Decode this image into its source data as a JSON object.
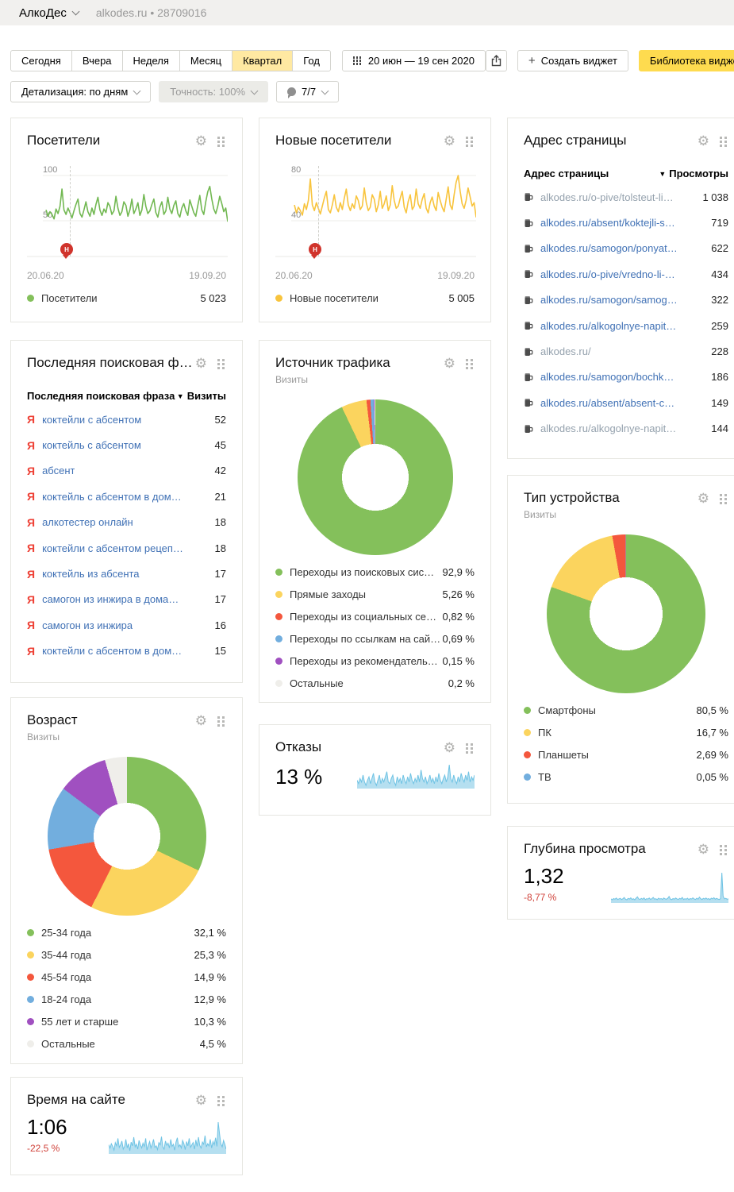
{
  "topbar": {
    "counter_name": "АлкоДес",
    "site": "alkodes.ru",
    "separator": "•",
    "counter_id": "28709016"
  },
  "toolbar": {
    "periods": [
      {
        "label": "Сегодня",
        "active": false
      },
      {
        "label": "Вчера",
        "active": false
      },
      {
        "label": "Неделя",
        "active": false
      },
      {
        "label": "Месяц",
        "active": false
      },
      {
        "label": "Квартал",
        "active": true
      },
      {
        "label": "Год",
        "active": false
      }
    ],
    "date_range": "20 июн — 19 сен 2020",
    "create_widget_label": "Создать виджет",
    "widget_library_label": "Библиотека виджетов",
    "detalization_label": "Детализация: по дням",
    "accuracy_label": "Точность: 100%",
    "notes_label": "7/7"
  },
  "colors": {
    "accent_yellow": "#fedb4f",
    "active_period": "#ffe9a2",
    "green": "#84c05b",
    "yellow": "#fbd45e",
    "red": "#f4573d",
    "blue": "#72aede",
    "purple": "#a050c0",
    "gray_slice": "#efeeea",
    "delta_red": "#d0433b"
  },
  "widgets": {
    "visitors": {
      "title": "Посетители",
      "legend_label": "Посетители",
      "total": "5 023",
      "date_start": "20.06.20",
      "date_end": "19.09.20",
      "note_marker": "Н"
    },
    "new_visitors": {
      "title": "Новые посетители",
      "legend_label": "Новые посетители",
      "total": "5 005",
      "date_start": "20.06.20",
      "date_end": "19.09.20",
      "note_marker": "Н"
    },
    "page_urls": {
      "title": "Адрес страницы",
      "col1": "Адрес страницы",
      "col2": "Просмотры",
      "sort_arrow": "▼",
      "rows": [
        {
          "url": "alkodes.ru/o-pive/tolsteut-li…",
          "views": "1 038",
          "muted": true
        },
        {
          "url": "alkodes.ru/absent/koktejli-s…",
          "views": "719",
          "muted": false
        },
        {
          "url": "alkodes.ru/samogon/ponyat…",
          "views": "622",
          "muted": false
        },
        {
          "url": "alkodes.ru/o-pive/vredno-li-…",
          "views": "434",
          "muted": false
        },
        {
          "url": "alkodes.ru/samogon/samog…",
          "views": "322",
          "muted": false
        },
        {
          "url": "alkodes.ru/alkogolnye-napit…",
          "views": "259",
          "muted": false
        },
        {
          "url": "alkodes.ru/",
          "views": "228",
          "muted": true
        },
        {
          "url": "alkodes.ru/samogon/bochk…",
          "views": "186",
          "muted": false
        },
        {
          "url": "alkodes.ru/absent/absent-c…",
          "views": "149",
          "muted": false
        },
        {
          "url": "alkodes.ru/alkogolnye-napit…",
          "views": "144",
          "muted": true
        }
      ]
    },
    "search_phrases": {
      "title": "Последняя поисковая ф…",
      "col1": "Последняя поисковая фраза",
      "col2": "Визиты",
      "sort_arrow": "▼",
      "search_engine_icon": "Я",
      "rows": [
        {
          "phrase": "коктейли с абсентом",
          "visits": "52"
        },
        {
          "phrase": "коктейль с абсентом",
          "visits": "45"
        },
        {
          "phrase": "абсент",
          "visits": "42"
        },
        {
          "phrase": "коктейль с абсентом в дом…",
          "visits": "21"
        },
        {
          "phrase": "алкотестер онлайн",
          "visits": "18"
        },
        {
          "phrase": "коктейли с абсентом рецеп…",
          "visits": "18"
        },
        {
          "phrase": "коктейль из абсента",
          "visits": "17"
        },
        {
          "phrase": "самогон из инжира в дома…",
          "visits": "17"
        },
        {
          "phrase": "самогон из инжира",
          "visits": "16"
        },
        {
          "phrase": "коктейли с абсентом в дом…",
          "visits": "15"
        }
      ]
    },
    "traffic_source": {
      "title": "Источник трафика",
      "subtitle": "Визиты"
    },
    "device_type": {
      "title": "Тип устройства",
      "subtitle": "Визиты"
    },
    "age": {
      "title": "Возраст",
      "subtitle": "Визиты"
    },
    "bounces": {
      "title": "Отказы",
      "value": "13 %"
    },
    "depth": {
      "title": "Глубина просмотра",
      "value": "1,32",
      "delta": "-8,77 %"
    },
    "time_on_site": {
      "title": "Время на сайте",
      "value": "1:06",
      "delta": "-22,5 %"
    }
  },
  "chart_data": {
    "visitors": {
      "type": "line",
      "title": "Посетители",
      "color": "#72b852",
      "x_range": [
        "20.06.20",
        "19.09.20"
      ],
      "y_gridlines": [
        100,
        50
      ],
      "total": 5023,
      "values": [
        62,
        55,
        60,
        57,
        52,
        63,
        58,
        66,
        85,
        62,
        57,
        64,
        59,
        53,
        61,
        68,
        74,
        58,
        54,
        62,
        71,
        60,
        55,
        64,
        57,
        68,
        76,
        62,
        56,
        63,
        59,
        70,
        66,
        57,
        61,
        77,
        64,
        56,
        60,
        71,
        67,
        55,
        62,
        74,
        58,
        63,
        70,
        56,
        62,
        79,
        66,
        58,
        61,
        68,
        74,
        59,
        54,
        65,
        71,
        57,
        61,
        76,
        63,
        58,
        67,
        72,
        58,
        54,
        64,
        69,
        61,
        56,
        73,
        66,
        59,
        55,
        67,
        78,
        62,
        57,
        71,
        82,
        88,
        74,
        63,
        58,
        66,
        77,
        69,
        60,
        64,
        49
      ]
    },
    "new_visitors": {
      "type": "line",
      "title": "Новые посетители",
      "color": "#f8c43d",
      "x_range": [
        "20.06.20",
        "19.09.20"
      ],
      "y_gridlines": [
        80,
        40
      ],
      "total": 5005,
      "values": [
        54,
        47,
        52,
        49,
        45,
        55,
        50,
        58,
        77,
        54,
        49,
        56,
        51,
        46,
        53,
        60,
        66,
        50,
        47,
        54,
        63,
        52,
        48,
        56,
        50,
        60,
        68,
        54,
        49,
        55,
        51,
        62,
        58,
        50,
        53,
        69,
        56,
        49,
        52,
        63,
        59,
        48,
        54,
        66,
        51,
        55,
        62,
        49,
        54,
        71,
        58,
        51,
        53,
        60,
        66,
        52,
        47,
        57,
        63,
        50,
        53,
        68,
        55,
        51,
        59,
        64,
        51,
        47,
        56,
        61,
        53,
        49,
        65,
        58,
        52,
        48,
        59,
        70,
        54,
        50,
        63,
        74,
        80,
        66,
        55,
        51,
        58,
        69,
        61,
        53,
        56,
        43
      ]
    },
    "traffic_source": {
      "type": "donut",
      "title": "Источник трафика",
      "metric": "Визиты",
      "slices": [
        {
          "label": "Переходы из поисковых сис…",
          "pct": 92.9,
          "value_label": "92,9 %",
          "color": "#84c05b"
        },
        {
          "label": "Прямые заходы",
          "pct": 5.26,
          "value_label": "5,26 %",
          "color": "#fbd45e"
        },
        {
          "label": "Переходы из социальных се…",
          "pct": 0.82,
          "value_label": "0,82 %",
          "color": "#f4573d"
        },
        {
          "label": "Переходы по ссылкам на сай…",
          "pct": 0.69,
          "value_label": "0,69 %",
          "color": "#72aede"
        },
        {
          "label": "Переходы из рекомендатель…",
          "pct": 0.15,
          "value_label": "0,15 %",
          "color": "#a050c0"
        },
        {
          "label": "Остальные",
          "pct": 0.2,
          "value_label": "0,2 %",
          "color": "#efeeea"
        }
      ]
    },
    "device_type": {
      "type": "donut",
      "title": "Тип устройства",
      "metric": "Визиты",
      "slices": [
        {
          "label": "Смартфоны",
          "pct": 80.5,
          "value_label": "80,5 %",
          "color": "#84c05b"
        },
        {
          "label": "ПК",
          "pct": 16.7,
          "value_label": "16,7 %",
          "color": "#fbd45e"
        },
        {
          "label": "Планшеты",
          "pct": 2.69,
          "value_label": "2,69 %",
          "color": "#f4573d"
        },
        {
          "label": "ТВ",
          "pct": 0.05,
          "value_label": "0,05 %",
          "color": "#72aede"
        }
      ]
    },
    "age": {
      "type": "donut",
      "title": "Возраст",
      "metric": "Визиты",
      "slices": [
        {
          "label": "25-34 года",
          "pct": 32.1,
          "value_label": "32,1 %",
          "color": "#84c05b"
        },
        {
          "label": "35-44 года",
          "pct": 25.3,
          "value_label": "25,3 %",
          "color": "#fbd45e"
        },
        {
          "label": "45-54 года",
          "pct": 14.9,
          "value_label": "14,9 %",
          "color": "#f4573d"
        },
        {
          "label": "18-24 года",
          "pct": 12.9,
          "value_label": "12,9 %",
          "color": "#72aede"
        },
        {
          "label": "55 лет и старше",
          "pct": 10.3,
          "value_label": "10,3 %",
          "color": "#a050c0"
        },
        {
          "label": "Остальные",
          "pct": 4.5,
          "value_label": "4,5 %",
          "color": "#efeeea"
        }
      ]
    },
    "bounces_spark": {
      "type": "area",
      "title": "Отказы",
      "value": "13 %",
      "color_fill": "#b5dff0",
      "color_line": "#6fc3e4",
      "values": [
        13,
        11,
        14,
        12,
        16,
        12,
        10,
        13,
        15,
        11,
        14,
        17,
        12,
        10,
        13,
        16,
        11,
        14,
        12,
        15,
        18,
        12,
        11,
        14,
        16,
        12,
        10,
        15,
        12,
        14,
        11,
        16,
        13,
        11,
        15,
        12,
        17,
        13,
        11,
        14,
        12,
        16,
        12,
        19,
        14,
        12,
        15,
        11,
        13,
        16,
        12,
        14,
        11,
        15,
        12,
        17,
        13,
        11,
        14,
        16,
        12,
        15,
        22,
        14,
        12,
        16,
        13,
        11,
        15,
        12,
        17,
        14,
        12,
        16,
        13,
        18,
        12,
        15,
        13,
        16
      ]
    },
    "depth_spark": {
      "type": "area",
      "title": "Глубина просмотра",
      "value": 1.32,
      "delta_pct": -8.77,
      "color_fill": "#b5dff0",
      "color_line": "#6fc3e4",
      "values": [
        1.3,
        1.25,
        1.32,
        1.28,
        1.35,
        1.27,
        1.3,
        1.33,
        1.26,
        1.31,
        1.38,
        1.28,
        1.25,
        1.33,
        1.29,
        1.36,
        1.27,
        1.31,
        1.25,
        1.34,
        1.42,
        1.3,
        1.27,
        1.33,
        1.28,
        1.36,
        1.26,
        1.31,
        1.29,
        1.35,
        1.27,
        1.32,
        1.38,
        1.28,
        1.31,
        1.26,
        1.34,
        1.29,
        1.32,
        1.27,
        1.35,
        1.3,
        1.28,
        1.33,
        1.44,
        1.29,
        1.26,
        1.32,
        1.28,
        1.35,
        1.3,
        1.27,
        1.33,
        1.29,
        1.38,
        1.27,
        1.31,
        1.28,
        1.34,
        1.26,
        1.32,
        1.29,
        1.36,
        1.3,
        1.27,
        1.34,
        1.28,
        1.4,
        1.31,
        1.27,
        1.33,
        1.29,
        1.35,
        1.28,
        1.32,
        1.26,
        1.34,
        1.3,
        1.37,
        1.28,
        1.33,
        1.29,
        1.27,
        1.31,
        2.8,
        1.45,
        1.3,
        1.33,
        1.28,
        1.3
      ]
    },
    "time_spark": {
      "type": "area",
      "title": "Время на сайте",
      "value": "1:06",
      "delta_pct": -22.5,
      "color_fill": "#b5dff0",
      "color_line": "#6fc3e4",
      "values": [
        58,
        52,
        60,
        55,
        48,
        62,
        56,
        70,
        53,
        58,
        65,
        50,
        55,
        68,
        52,
        60,
        47,
        63,
        56,
        72,
        54,
        59,
        50,
        66,
        58,
        52,
        61,
        55,
        70,
        48,
        57,
        64,
        52,
        59,
        68,
        53,
        56,
        49,
        62,
        58,
        73,
        54,
        50,
        65,
        57,
        61,
        52,
        68,
        55,
        59,
        48,
        63,
        71,
        54,
        58,
        52,
        66,
        60,
        49,
        64,
        56,
        70,
        53,
        58,
        62,
        50,
        67,
        55,
        72,
        57,
        52,
        63,
        59,
        75,
        54,
        60,
        56,
        68,
        52,
        64,
        58,
        71,
        55,
        100,
        78,
        60,
        54,
        66,
        59,
        50
      ]
    }
  }
}
